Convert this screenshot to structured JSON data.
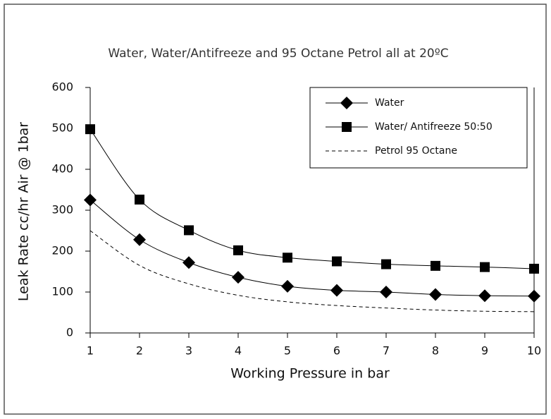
{
  "chart_data": {
    "type": "line",
    "title": "Water, Water/Antifreeze and 95 Octane Petrol all at 20ºC",
    "x_label": "Working Pressure in bar",
    "y_label": "Leak Rate cc/hr Air @ 1bar",
    "x": [
      1,
      2,
      3,
      4,
      5,
      6,
      7,
      8,
      9,
      10
    ],
    "xlim": [
      1,
      10
    ],
    "xticks": [
      1,
      2,
      3,
      4,
      5,
      6,
      7,
      8,
      9,
      10
    ],
    "ylim": [
      0,
      600
    ],
    "yticks": [
      0,
      100,
      200,
      300,
      400,
      500,
      600
    ],
    "grid": false,
    "legend": "upper right",
    "series": [
      {
        "name": "Water",
        "color": "#000000",
        "marker": "diamond",
        "dash": false,
        "values": [
          325,
          228,
          172,
          136,
          114,
          104,
          100,
          94,
          91,
          90
        ]
      },
      {
        "name": "Water/ Antifreeze 50:50",
        "color": "#000000",
        "marker": "square",
        "dash": false,
        "values": [
          498,
          326,
          251,
          202,
          184,
          175,
          168,
          164,
          161,
          157
        ]
      },
      {
        "name": "Petrol 95 Octane",
        "color": "#000000",
        "marker": "none",
        "dash": true,
        "values": [
          250,
          165,
          120,
          92,
          76,
          67,
          61,
          56,
          53,
          52
        ]
      }
    ]
  }
}
